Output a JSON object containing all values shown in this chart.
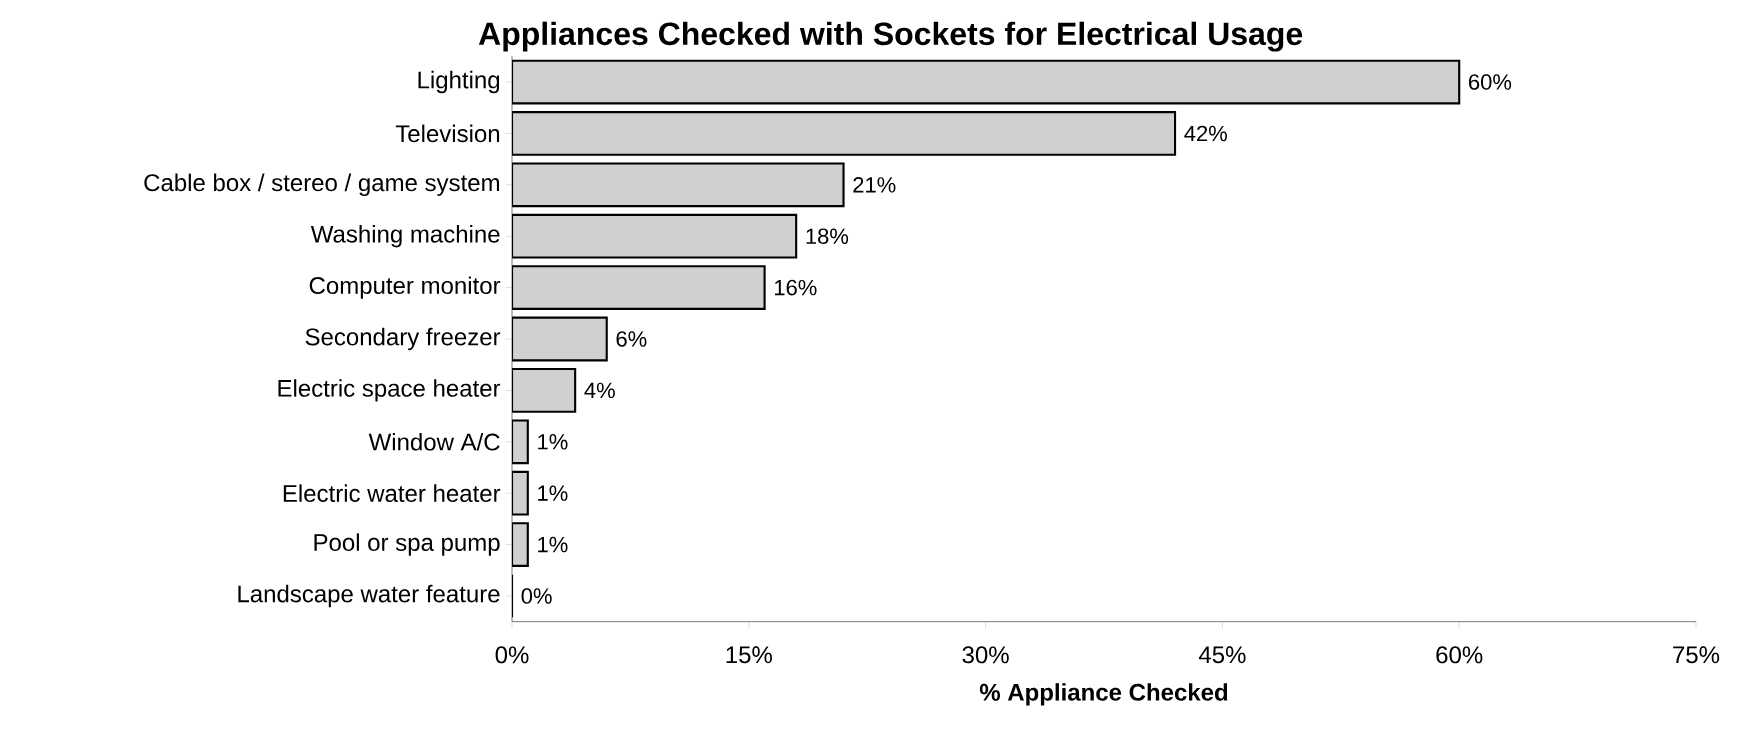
{
  "chart_data": {
    "type": "bar",
    "orientation": "horizontal",
    "title": "Appliances Checked with Sockets for Electrical Usage",
    "xlabel": "% Appliance Checked",
    "categories": [
      "Lighting",
      "Television",
      "Cable box / stereo / game system",
      "Washing machine",
      "Computer monitor",
      "Secondary freezer",
      "Electric space heater",
      "Window A/C",
      "Electric water heater",
      "Pool or spa pump",
      "Landscape water feature"
    ],
    "values": [
      60,
      42,
      21,
      18,
      16,
      6,
      4,
      1,
      1,
      1,
      0
    ],
    "value_labels": [
      "60%",
      "42%",
      "21%",
      "18%",
      "16%",
      "6%",
      "4%",
      "1%",
      "1%",
      "1%",
      "0%"
    ],
    "color": "#d0d0d0",
    "xlim": [
      0,
      75
    ],
    "xticks": [
      {
        "value": 0,
        "label": "0%"
      },
      {
        "value": 15,
        "label": "15%"
      },
      {
        "value": 30,
        "label": "30%"
      },
      {
        "value": 45,
        "label": "45%"
      },
      {
        "value": 60,
        "label": "60%"
      },
      {
        "value": 75,
        "label": "75%"
      }
    ],
    "grid": false
  }
}
